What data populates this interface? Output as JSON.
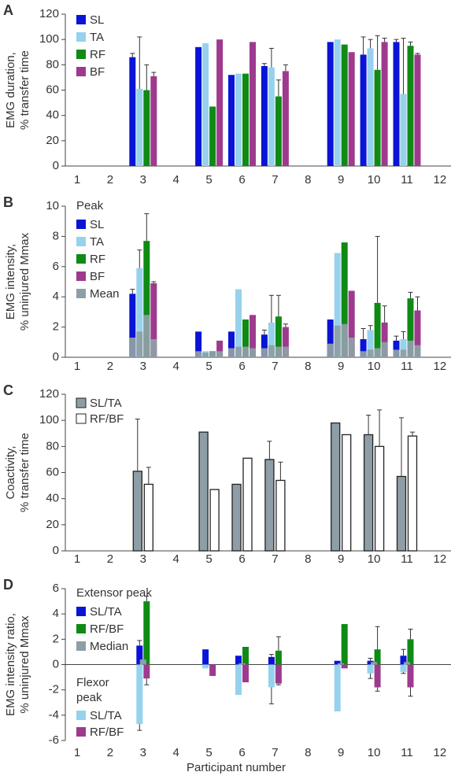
{
  "colors": {
    "SL": "#0a14d6",
    "TA": "#96d2ee",
    "RF": "#0f8a14",
    "BF": "#9e3a8e",
    "Mean": "#8e9ea6",
    "Median": "#8e9ea6",
    "RFBF_open": "#ffffff",
    "axis": "#444444"
  },
  "xlabel": "Participant number",
  "chart_data": [
    {
      "type": "bar",
      "panel_letter": "A",
      "ylabel": [
        "EMG duration,",
        "% transfer time"
      ],
      "categories": [
        "1",
        "2",
        "3",
        "4",
        "5",
        "6",
        "7",
        "8",
        "9",
        "10",
        "11",
        "12"
      ],
      "ylim": [
        0,
        120
      ],
      "yticks": [
        0,
        20,
        40,
        60,
        80,
        100,
        120
      ],
      "legend": {
        "title": "",
        "entries": [
          "SL",
          "TA",
          "RF",
          "BF"
        ]
      },
      "series": [
        {
          "name": "SL",
          "color_key": "SL",
          "values": [
            null,
            null,
            86,
            null,
            94,
            72,
            79,
            null,
            98,
            88,
            98,
            null
          ],
          "error": [
            null,
            null,
            3,
            null,
            null,
            null,
            2,
            null,
            null,
            14,
            2,
            null
          ]
        },
        {
          "name": "TA",
          "color_key": "TA",
          "values": [
            null,
            null,
            61,
            null,
            97,
            73,
            78,
            null,
            100,
            93,
            57,
            null
          ],
          "error": [
            null,
            null,
            41,
            null,
            null,
            null,
            15,
            null,
            null,
            7,
            44,
            null
          ]
        },
        {
          "name": "RF",
          "color_key": "RF",
          "values": [
            null,
            null,
            60,
            null,
            47,
            73,
            55,
            null,
            96,
            76,
            95,
            null
          ],
          "error": [
            null,
            null,
            20,
            null,
            null,
            null,
            13,
            null,
            null,
            27,
            3,
            null
          ]
        },
        {
          "name": "BF",
          "color_key": "BF",
          "values": [
            null,
            null,
            71,
            null,
            100,
            98,
            75,
            null,
            90,
            98,
            88,
            null
          ],
          "error": [
            null,
            null,
            3,
            null,
            null,
            null,
            5,
            null,
            null,
            3,
            1,
            null
          ]
        }
      ]
    },
    {
      "type": "bar",
      "panel_letter": "B",
      "ylabel": [
        "EMG intensity,",
        "% uninjured Mmax"
      ],
      "categories": [
        "1",
        "2",
        "3",
        "4",
        "5",
        "6",
        "7",
        "8",
        "9",
        "10",
        "11",
        "12"
      ],
      "ylim": [
        0,
        10
      ],
      "yticks": [
        0,
        2,
        4,
        6,
        8,
        10
      ],
      "legend": {
        "title": "Peak",
        "entries": [
          "SL",
          "TA",
          "RF",
          "BF",
          "Mean"
        ]
      },
      "series": [
        {
          "name": "SL",
          "color_key": "SL",
          "values": [
            null,
            null,
            4.2,
            null,
            1.7,
            1.7,
            1.5,
            null,
            2.5,
            1.2,
            1.1,
            null
          ],
          "error": [
            null,
            null,
            0.3,
            null,
            null,
            null,
            0.3,
            null,
            null,
            0.7,
            0.3,
            null
          ]
        },
        {
          "name": "TA",
          "color_key": "TA",
          "values": [
            null,
            null,
            5.9,
            null,
            0.4,
            4.5,
            2.3,
            null,
            6.9,
            1.8,
            1.2,
            null
          ],
          "error": [
            null,
            null,
            1.2,
            null,
            null,
            null,
            1.8,
            null,
            null,
            0.3,
            0.5,
            null
          ]
        },
        {
          "name": "RF",
          "color_key": "RF",
          "values": [
            null,
            null,
            7.7,
            null,
            0.4,
            2.5,
            2.7,
            null,
            7.6,
            3.6,
            3.9,
            null
          ],
          "error": [
            null,
            null,
            1.8,
            null,
            null,
            null,
            1.4,
            null,
            null,
            4.4,
            0.4,
            null
          ]
        },
        {
          "name": "BF",
          "color_key": "BF",
          "values": [
            null,
            null,
            4.9,
            null,
            1.1,
            2.8,
            2.0,
            null,
            4.4,
            2.3,
            3.1,
            null
          ],
          "error": [
            null,
            null,
            0.1,
            null,
            null,
            null,
            0.2,
            null,
            null,
            1.1,
            0.9,
            null
          ]
        }
      ],
      "mean_series": {
        "name": "Mean",
        "color_key": "Mean",
        "values": [
          [
            null,
            null,
            null,
            null
          ],
          [
            null,
            null,
            null,
            null
          ],
          [
            1.3,
            1.7,
            2.8,
            1.2
          ],
          [
            null,
            null,
            null,
            null
          ],
          [
            0.4,
            0.3,
            0.4,
            0.4
          ],
          [
            0.6,
            0.7,
            0.7,
            0.6
          ],
          [
            0.6,
            0.8,
            0.7,
            0.7
          ],
          [
            null,
            null,
            null,
            null
          ],
          [
            0.9,
            2.1,
            2.2,
            1.3
          ],
          [
            0.4,
            0.5,
            0.6,
            1.0
          ],
          [
            0.5,
            0.5,
            1.1,
            0.8
          ],
          [
            null,
            null,
            null,
            null
          ]
        ]
      }
    },
    {
      "type": "bar",
      "panel_letter": "C",
      "ylabel": [
        "Coactivity,",
        "% transfer time"
      ],
      "categories": [
        "1",
        "2",
        "3",
        "4",
        "5",
        "6",
        "7",
        "8",
        "9",
        "10",
        "11",
        "12"
      ],
      "ylim": [
        0,
        120
      ],
      "yticks": [
        0,
        20,
        40,
        60,
        80,
        100,
        120
      ],
      "legend": {
        "title": "",
        "entries": [
          "SL/TA",
          "RF/BF"
        ]
      },
      "series": [
        {
          "name": "SL/TA",
          "color_key": "Mean",
          "values": [
            null,
            null,
            61,
            null,
            91,
            51,
            70,
            null,
            98,
            89,
            57,
            null
          ],
          "error": [
            null,
            null,
            40,
            null,
            null,
            null,
            14,
            null,
            null,
            15,
            45,
            null
          ]
        },
        {
          "name": "RF/BF",
          "color_key": "RFBF_open",
          "values": [
            null,
            null,
            51,
            null,
            47,
            71,
            54,
            null,
            89,
            80,
            88,
            null
          ],
          "error": [
            null,
            null,
            13,
            null,
            null,
            null,
            14,
            null,
            null,
            28,
            3,
            null
          ]
        }
      ]
    },
    {
      "type": "bar",
      "panel_letter": "D",
      "ylabel": [
        "EMG intensity ratio,",
        "% uninjured Mmax"
      ],
      "categories": [
        "1",
        "2",
        "3",
        "4",
        "5",
        "6",
        "7",
        "8",
        "9",
        "10",
        "11",
        "12"
      ],
      "ylim": [
        -6,
        6
      ],
      "yticks": [
        -6,
        -4,
        -2,
        0,
        2,
        4,
        6
      ],
      "legend": {
        "title": "Extensor peak",
        "entries": [
          "SL/TA",
          "RF/BF",
          "Median"
        ]
      },
      "legend2": {
        "title": "Flexor peak",
        "entries": [
          "SL/TA",
          "RF/BF"
        ]
      },
      "series": [
        {
          "name": "SL/TA",
          "color_key": "SL",
          "values": [
            null,
            null,
            1.5,
            null,
            1.2,
            0.7,
            0.6,
            null,
            0.3,
            0.3,
            0.7,
            null
          ],
          "error": [
            null,
            null,
            0.4,
            null,
            null,
            null,
            0.2,
            null,
            null,
            0.2,
            0.5,
            null
          ]
        },
        {
          "name": "RF/BF",
          "color_key": "RF",
          "values": [
            null,
            null,
            5.0,
            null,
            0,
            1.4,
            1.1,
            null,
            3.2,
            1.2,
            2.0,
            null
          ],
          "error": [
            null,
            null,
            0.4,
            null,
            null,
            null,
            1.1,
            null,
            null,
            1.8,
            0.8,
            null
          ]
        },
        {
          "name": "Flexor SL/TA",
          "color_key": "TA",
          "values": [
            null,
            null,
            -4.7,
            null,
            -0.3,
            -2.4,
            -1.8,
            null,
            -3.7,
            -0.7,
            -0.6,
            null
          ],
          "error": [
            null,
            null,
            0.5,
            null,
            null,
            null,
            1.3,
            null,
            null,
            0.4,
            0.1,
            null
          ]
        },
        {
          "name": "Flexor RF/BF",
          "color_key": "BF",
          "values": [
            null,
            null,
            -1.1,
            null,
            -0.9,
            -1.4,
            -1.5,
            null,
            -0.3,
            -1.8,
            -1.8,
            null
          ],
          "error": [
            null,
            null,
            0.5,
            null,
            null,
            null,
            0.1,
            null,
            null,
            0.3,
            0.7,
            null
          ]
        }
      ],
      "median_values": [
        null,
        null,
        0.4,
        null,
        0,
        0.1,
        0,
        null,
        0.1,
        0.2,
        0.2,
        null
      ]
    }
  ]
}
